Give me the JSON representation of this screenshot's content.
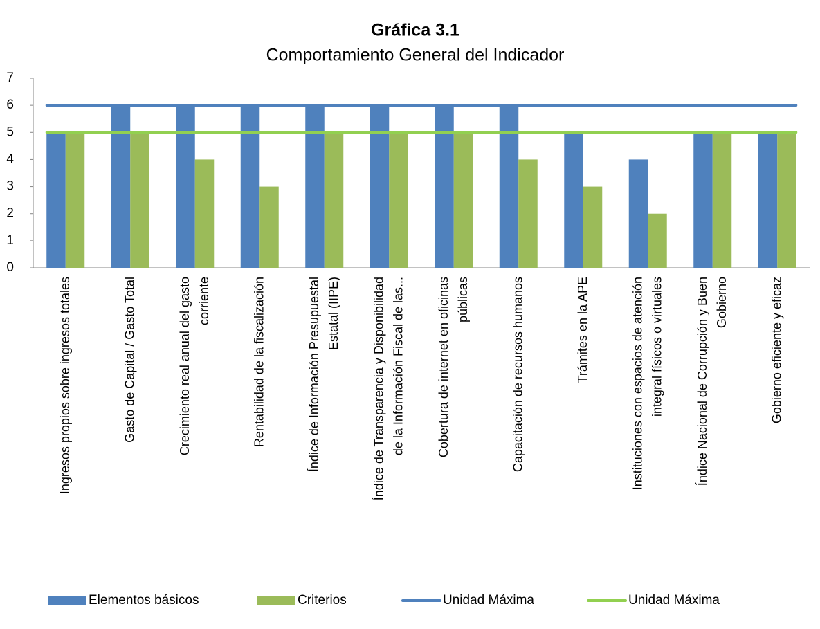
{
  "chart_data": {
    "type": "bar_line",
    "title": "Gráfica 3.1",
    "subtitle": "Comportamiento General del Indicador",
    "categories": [
      "Ingresos propios sobre ingresos totales",
      "Gasto de Capital / Gasto Total",
      "Crecimiento real anual del gasto corriente",
      "Rentabilidad de la fiscalización",
      "Índice de Información Presupuestal Estatal (IIPE)",
      "Índice de Transparencia y Disponibilidad de la Información Fiscal de las...",
      "Cobertura de internet en oficinas públicas",
      "Capacitación de recursos humanos",
      "Trámites en la APE",
      "Instituciones con espacios de atención integral físicos o virtuales",
      "Índice Nacional de Corrupción y Buen Gobierno",
      "Gobierno eficiente y eficaz"
    ],
    "series": [
      {
        "name": "Elementos básicos",
        "color": "#4f81bd",
        "kind": "bar",
        "values": [
          5,
          6,
          6,
          6,
          6,
          6,
          6,
          6,
          5,
          4,
          5,
          5
        ]
      },
      {
        "name": "Criterios",
        "color": "#9bbb59",
        "kind": "bar",
        "values": [
          5,
          5,
          4,
          3,
          5,
          5,
          5,
          4,
          3,
          2,
          5,
          5
        ]
      },
      {
        "name": "Unidad Máxima",
        "color": "#4f81bd",
        "kind": "line",
        "values": [
          6,
          6,
          6,
          6,
          6,
          6,
          6,
          6,
          6,
          6,
          6,
          6
        ]
      },
      {
        "name": "Unidad Máxima",
        "color": "#92d050",
        "kind": "line",
        "values": [
          5,
          5,
          5,
          5,
          5,
          5,
          5,
          5,
          5,
          5,
          5,
          5
        ]
      }
    ],
    "ylim": [
      0,
      7
    ],
    "yticks": [
      0,
      1,
      2,
      3,
      4,
      5,
      6,
      7
    ],
    "legend": "bottom"
  }
}
